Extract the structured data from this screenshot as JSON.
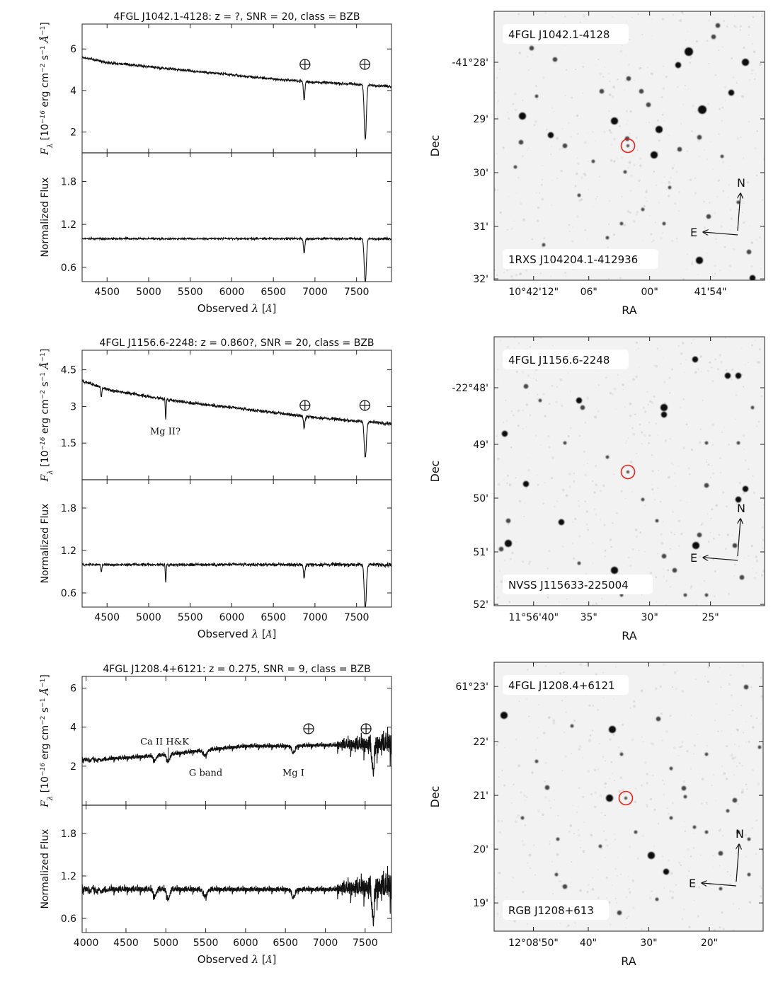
{
  "chart_data": [
    {
      "type": "line",
      "title": "4FGL J1042.1-4128: z = ?, SNR = 20, class = BZB",
      "xlabel": "Observed λ [Å]",
      "ylabel_top": "Fλ [10^-16 erg cm^-2 s^-1 Å^-1]",
      "ylabel_bottom": "Normalized Flux",
      "xlim": [
        4200,
        7920
      ],
      "ylim_top": [
        1.0,
        7.2
      ],
      "ylim_bottom": [
        0.4,
        2.2
      ],
      "x_ticks": [
        4500,
        5000,
        5500,
        6000,
        6500,
        7000,
        7500
      ],
      "y_ticks_top": [
        2,
        4,
        6
      ],
      "y_ticks_bottom": [
        0.6,
        1.2,
        1.8
      ],
      "flux_continuum": [
        [
          4200,
          5.6
        ],
        [
          4500,
          5.35
        ],
        [
          5000,
          5.15
        ],
        [
          5500,
          4.95
        ],
        [
          6000,
          4.75
        ],
        [
          6500,
          4.55
        ],
        [
          7000,
          4.4
        ],
        [
          7500,
          4.3
        ],
        [
          7920,
          4.2
        ]
      ],
      "absorption": [
        {
          "center": 6870,
          "width": 12,
          "depth": 0.2
        },
        {
          "center": 7605,
          "width": 18,
          "depth": 0.62
        }
      ],
      "telluric_positions": [
        6880,
        7600
      ],
      "noise": 0.04,
      "line_labels": []
    },
    {
      "type": "line",
      "title": "4FGL J1156.6-2248: z = 0.860?, SNR = 20, class = BZB",
      "xlabel": "Observed λ [Å]",
      "ylabel_top": "Fλ [10^-16 erg cm^-2 s^-1 Å^-1]",
      "ylabel_bottom": "Normalized Flux",
      "xlim": [
        4200,
        7920
      ],
      "ylim_top": [
        0.0,
        5.3
      ],
      "ylim_bottom": [
        0.4,
        2.2
      ],
      "x_ticks": [
        4500,
        5000,
        5500,
        6000,
        6500,
        7000,
        7500
      ],
      "y_ticks_top": [
        1.5,
        3.0,
        4.5
      ],
      "y_ticks_bottom": [
        0.6,
        1.2,
        1.8
      ],
      "flux_continuum": [
        [
          4200,
          4.05
        ],
        [
          4500,
          3.7
        ],
        [
          5000,
          3.4
        ],
        [
          5500,
          3.15
        ],
        [
          6000,
          2.95
        ],
        [
          6500,
          2.75
        ],
        [
          7000,
          2.55
        ],
        [
          7500,
          2.4
        ],
        [
          7920,
          2.3
        ]
      ],
      "absorption": [
        {
          "center": 4430,
          "width": 10,
          "depth": 0.1
        },
        {
          "center": 5205,
          "width": 7,
          "depth": 0.25
        },
        {
          "center": 6870,
          "width": 12,
          "depth": 0.2
        },
        {
          "center": 7605,
          "width": 18,
          "depth": 0.62
        }
      ],
      "telluric_positions": [
        6880,
        7600
      ],
      "noise": 0.04,
      "line_labels": [
        {
          "text": "Mg II?",
          "x": 5200,
          "y": 1.85
        }
      ]
    },
    {
      "type": "line",
      "title": "4FGL J1208.4+6121: z = 0.275, SNR = 9, class = BZB",
      "xlabel": "Observed λ [Å]",
      "ylabel_top": "Fλ [10^-16 erg cm^-2 s^-1 Å^-1]",
      "ylabel_bottom": "Normalized Flux",
      "xlim": [
        3950,
        7830
      ],
      "ylim_top": [
        0.0,
        6.6
      ],
      "ylim_bottom": [
        0.4,
        2.2
      ],
      "x_ticks": [
        4000,
        4500,
        5000,
        5500,
        6000,
        6500,
        7000,
        7500
      ],
      "y_ticks_top": [
        2,
        4,
        6
      ],
      "y_ticks_bottom": [
        0.6,
        1.2,
        1.8
      ],
      "flux_continuum": [
        [
          3950,
          2.3
        ],
        [
          4500,
          2.4
        ],
        [
          5000,
          2.55
        ],
        [
          5500,
          2.8
        ],
        [
          6000,
          3.0
        ],
        [
          6500,
          3.0
        ],
        [
          7000,
          3.05
        ],
        [
          7500,
          3.0
        ],
        [
          7830,
          3.0
        ]
      ],
      "absorption": [
        {
          "center": 4860,
          "width": 25,
          "depth": 0.1
        },
        {
          "center": 5030,
          "width": 25,
          "depth": 0.14
        },
        {
          "center": 5490,
          "width": 35,
          "depth": 0.1
        },
        {
          "center": 6600,
          "width": 30,
          "depth": 0.12
        },
        {
          "center": 7600,
          "width": 20,
          "depth": 0.5
        }
      ],
      "telluric_positions": [
        6880,
        7600
      ],
      "noise": 0.09,
      "noisy_from": 7150,
      "line_labels": [
        {
          "text": "Ca II H&K",
          "x": 5020,
          "y": 3.1
        },
        {
          "text": "G band",
          "x": 5500,
          "y": 1.5
        },
        {
          "text": "Mg I",
          "x": 6600,
          "y": 1.5
        }
      ]
    },
    {
      "type": "table",
      "image": "finding-chart",
      "name_label": "4FGL J1042.1-4128",
      "counterpart_label": "1RXS J104204.1-412936",
      "xlabel": "RA",
      "ylabel": "Dec",
      "ra_ticks": [
        "10°42'12\"",
        "06\"",
        "00\"",
        "41'54\""
      ],
      "dec_ticks": [
        "-41°28'",
        "29'",
        "30'",
        "31'",
        "32'"
      ],
      "compass": {
        "north": "N",
        "east": "E"
      }
    },
    {
      "type": "table",
      "image": "finding-chart",
      "name_label": "4FGL J1156.6-2248",
      "counterpart_label": "NVSS J115633-225004",
      "xlabel": "RA",
      "ylabel": "Dec",
      "ra_ticks": [
        "11°56'40\"",
        "35\"",
        "30\"",
        "25\""
      ],
      "dec_ticks": [
        "-22°48'",
        "49'",
        "50'",
        "51'",
        "52'"
      ],
      "compass": {
        "north": "N",
        "east": "E"
      }
    },
    {
      "type": "table",
      "image": "finding-chart",
      "name_label": "4FGL J1208.4+6121",
      "counterpart_label": "RGB J1208+613",
      "xlabel": "RA",
      "ylabel": "Dec",
      "ra_ticks": [
        "12°08'50\"",
        "40\"",
        "30\"",
        "20\""
      ],
      "dec_ticks": [
        "61°23'",
        "22'",
        "21'",
        "20'",
        "19'"
      ],
      "compass": {
        "north": "N",
        "east": "E"
      }
    }
  ],
  "colors": {
    "line": "#111111",
    "marker": "#e8221c",
    "frame": "#222222"
  }
}
